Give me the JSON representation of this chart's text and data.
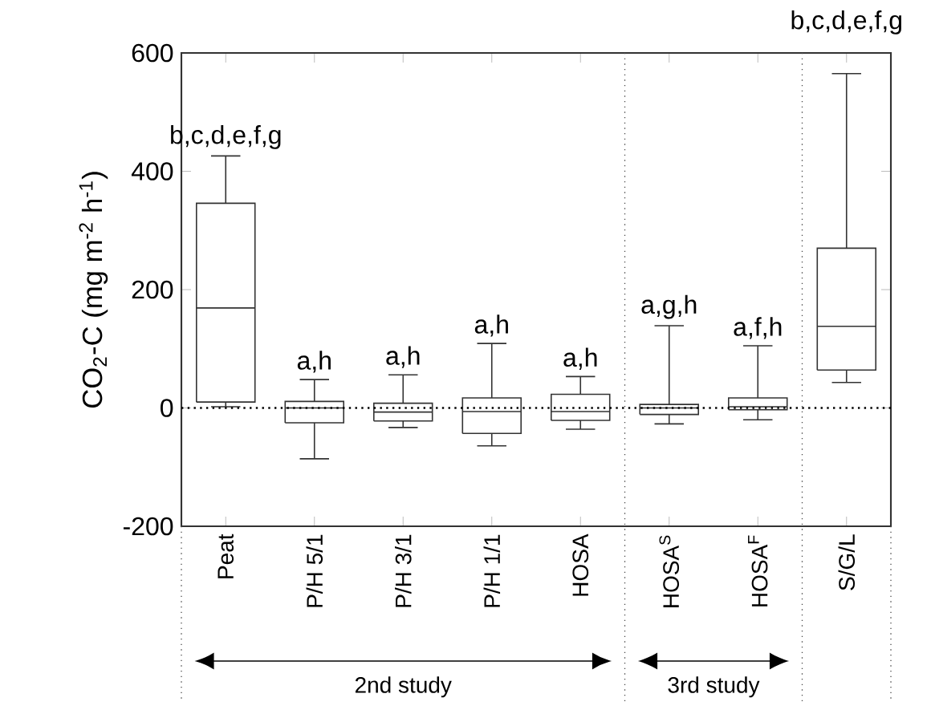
{
  "chart_data": {
    "type": "box",
    "ylabel": "CO$_{2}$-C (mg m$^{-2}$ h$^{-1}$)",
    "categories": [
      "Peat",
      "P/H 5/1",
      "P/H 3/1",
      "P/H 1/1",
      "HOSA",
      "HOSA$^{S}$",
      "HOSA$^{F}$",
      "S/G/L"
    ],
    "boxes": [
      {
        "low": 2,
        "q1": 10,
        "median": 169,
        "q3": 346,
        "high": 426
      },
      {
        "low": -86,
        "q1": -25,
        "median": 0,
        "q3": 11,
        "high": 48
      },
      {
        "low": -33,
        "q1": -22,
        "median": -7,
        "q3": 8,
        "high": 56
      },
      {
        "low": -64,
        "q1": -43,
        "median": -6,
        "q3": 17,
        "high": 109
      },
      {
        "low": -36,
        "q1": -21,
        "median": -6,
        "q3": 23,
        "high": 53
      },
      {
        "low": -27,
        "q1": -11,
        "median": 0,
        "q3": 6,
        "high": 139
      },
      {
        "low": -20,
        "q1": -3,
        "median": 2,
        "q3": 17,
        "high": 105
      },
      {
        "low": 43,
        "q1": 64,
        "median": 138,
        "q3": 270,
        "high": 565
      }
    ],
    "color": "#333333",
    "ylim": [
      -200,
      600
    ],
    "yticks": [
      -200,
      0,
      200,
      400,
      600
    ],
    "ref_lines": [
      {
        "axis": "y",
        "value": 0,
        "line_style": "dotted"
      }
    ],
    "annotations": [
      {
        "text": "b,c,d,e,f,g",
        "x": "Peat",
        "y": 426
      },
      {
        "text": "a,h",
        "x": "P/H 5/1",
        "y": 48
      },
      {
        "text": "a,h",
        "x": "P/H 3/1",
        "y": 56
      },
      {
        "text": "a,h",
        "x": "P/H 1/1",
        "y": 109
      },
      {
        "text": "a,h",
        "x": "HOSA",
        "y": 53
      },
      {
        "text": "a,g,h",
        "x": "HOSA$^{S}$",
        "y": 139
      },
      {
        "text": "a,f,h",
        "x": "HOSA$^{F}$",
        "y": 105
      },
      "b,c,d,e,f,g",
      "2nd study",
      "3rd study"
    ]
  }
}
